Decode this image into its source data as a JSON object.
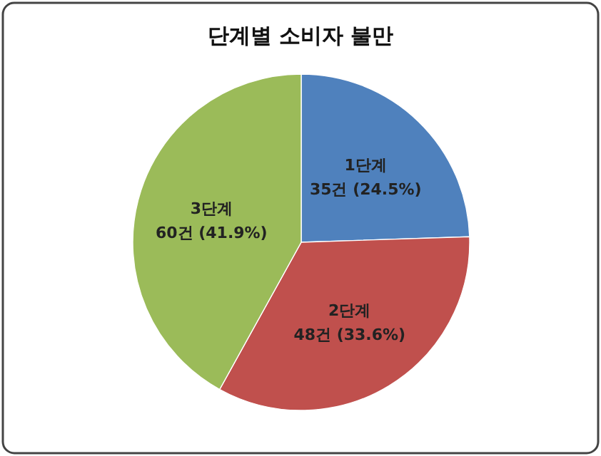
{
  "chart_data": {
    "type": "pie",
    "title": "단계별 소비자 불만",
    "categories": [
      "1단계",
      "2단계",
      "3단계"
    ],
    "values": [
      35,
      48,
      60
    ],
    "colors": [
      "#4f81bd",
      "#c0504d",
      "#9bbb59"
    ],
    "value_labels": [
      "35건 (24.5%)",
      "48건 (33.6%)",
      "60건 (41.9%)"
    ],
    "legend": false
  }
}
